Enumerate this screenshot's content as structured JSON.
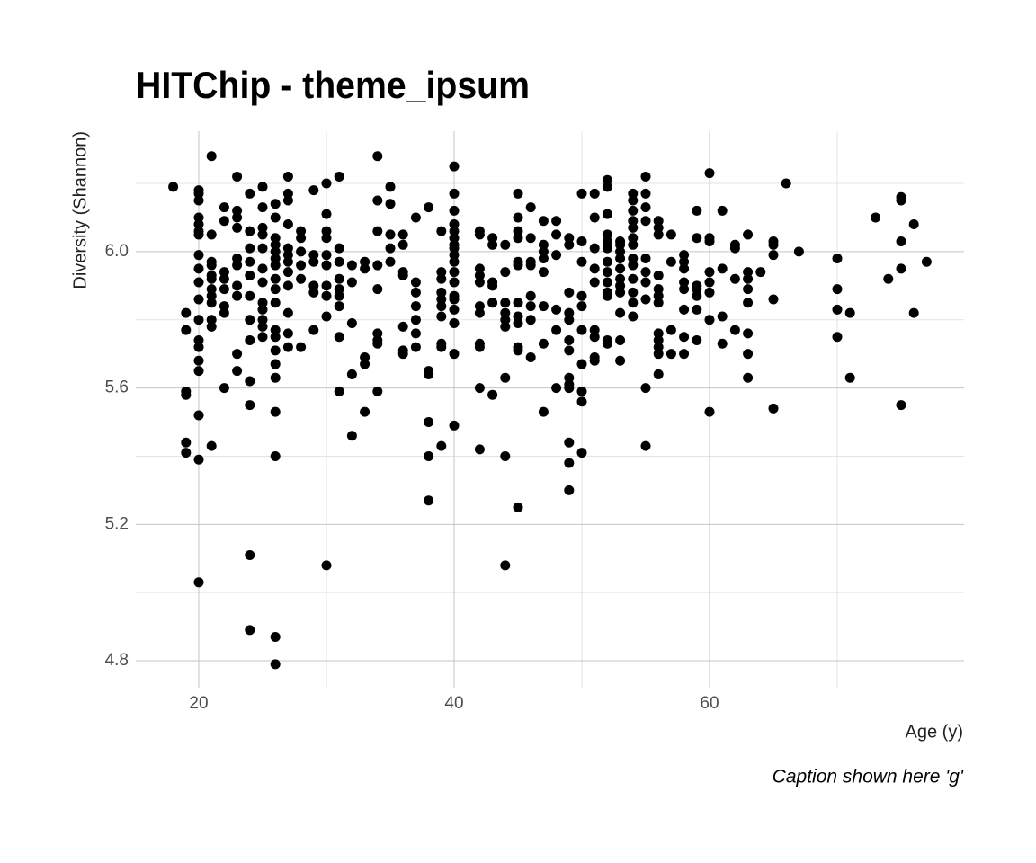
{
  "chart_data": {
    "type": "scatter",
    "title": "HITChip - theme_ipsum",
    "x_label": "Age (y)",
    "y_label": "Diversity (Shannon)",
    "caption": "Caption shown here 'g'",
    "color": "#000000",
    "grid": true,
    "xlim": [
      15.07,
      79.93
    ],
    "ylim": [
      4.721,
      6.353
    ],
    "xticks": [
      20,
      40,
      60
    ],
    "yticks": [
      4.8,
      5.2,
      5.6,
      6.0
    ],
    "xminor_ticks": [
      30,
      50,
      70
    ],
    "yminor_ticks": [
      5.0,
      5.4,
      5.8,
      6.2
    ],
    "x": [
      18,
      19,
      19,
      19,
      19,
      19,
      19,
      20,
      20,
      20,
      20,
      20,
      20,
      20,
      20,
      20,
      20,
      20,
      20,
      20,
      20,
      20,
      20,
      20,
      20,
      20,
      21,
      21,
      21,
      21,
      21,
      21,
      21,
      21,
      21,
      21,
      21,
      21,
      22,
      22,
      22,
      22,
      22,
      22,
      22,
      22,
      23,
      23,
      23,
      23,
      23,
      23,
      23,
      23,
      23,
      23,
      24,
      24,
      24,
      24,
      24,
      24,
      24,
      24,
      24,
      24,
      24,
      24,
      25,
      25,
      25,
      25,
      25,
      25,
      25,
      25,
      25,
      25,
      25,
      25,
      26,
      26,
      26,
      26,
      26,
      26,
      26,
      26,
      26,
      26,
      26,
      26,
      26,
      26,
      26,
      26,
      26,
      26,
      26,
      27,
      27,
      27,
      27,
      27,
      27,
      27,
      27,
      27,
      27,
      27,
      27,
      28,
      28,
      28,
      28,
      28,
      28,
      29,
      29,
      29,
      29,
      29,
      29,
      30,
      30,
      30,
      30,
      30,
      30,
      30,
      30,
      30,
      30,
      31,
      31,
      31,
      31,
      31,
      31,
      31,
      31,
      31,
      32,
      32,
      32,
      32,
      32,
      33,
      33,
      33,
      33,
      33,
      34,
      34,
      34,
      34,
      34,
      34,
      34,
      34,
      34,
      35,
      35,
      35,
      35,
      35,
      36,
      36,
      36,
      36,
      36,
      36,
      36,
      37,
      37,
      37,
      37,
      37,
      37,
      37,
      38,
      38,
      38,
      38,
      38,
      38,
      39,
      39,
      39,
      39,
      39,
      39,
      39,
      39,
      39,
      39,
      40,
      40,
      40,
      40,
      40,
      40,
      40,
      40,
      40,
      40,
      40,
      40,
      40,
      40,
      40,
      40,
      40,
      40,
      42,
      42,
      42,
      42,
      42,
      42,
      42,
      42,
      42,
      42,
      42,
      43,
      43,
      43,
      43,
      43,
      43,
      44,
      44,
      44,
      44,
      44,
      44,
      44,
      44,
      44,
      45,
      45,
      45,
      45,
      45,
      45,
      45,
      45,
      45,
      45,
      45,
      45,
      46,
      46,
      46,
      46,
      46,
      46,
      46,
      46,
      47,
      47,
      47,
      47,
      47,
      47,
      47,
      47,
      48,
      48,
      48,
      48,
      48,
      48,
      49,
      49,
      49,
      49,
      49,
      49,
      49,
      49,
      49,
      49,
      49,
      49,
      49,
      50,
      50,
      50,
      50,
      50,
      50,
      50,
      50,
      50,
      50,
      51,
      51,
      51,
      51,
      51,
      51,
      51,
      51,
      51,
      52,
      52,
      52,
      52,
      52,
      52,
      52,
      52,
      52,
      52,
      52,
      52,
      52,
      53,
      53,
      53,
      53,
      53,
      53,
      53,
      53,
      53,
      53,
      53,
      54,
      54,
      54,
      54,
      54,
      54,
      54,
      54,
      54,
      54,
      54,
      54,
      54,
      55,
      55,
      55,
      55,
      55,
      55,
      55,
      55,
      55,
      55,
      56,
      56,
      56,
      56,
      56,
      56,
      56,
      56,
      56,
      56,
      56,
      56,
      57,
      57,
      57,
      57,
      58,
      58,
      58,
      58,
      58,
      58,
      58,
      58,
      59,
      59,
      59,
      59,
      59,
      59,
      59,
      60,
      60,
      60,
      60,
      60,
      60,
      60,
      60,
      61,
      61,
      61,
      61,
      62,
      62,
      62,
      62,
      63,
      63,
      63,
      63,
      63,
      63,
      63,
      63,
      64,
      65,
      65,
      65,
      65,
      65,
      66,
      67,
      70,
      70,
      70,
      70,
      71,
      71,
      73,
      74,
      75,
      75,
      75,
      75,
      75,
      76,
      76,
      77
    ],
    "values": [
      6.19,
      5.82,
      5.77,
      5.59,
      5.58,
      5.44,
      5.41,
      6.18,
      6.17,
      6.15,
      6.1,
      6.08,
      6.06,
      6.05,
      5.99,
      5.95,
      5.91,
      5.86,
      5.8,
      5.74,
      5.72,
      5.68,
      5.65,
      5.52,
      5.39,
      5.03,
      6.28,
      6.05,
      5.97,
      5.96,
      5.93,
      5.92,
      5.89,
      5.87,
      5.85,
      5.8,
      5.78,
      5.43,
      6.13,
      6.09,
      5.94,
      5.92,
      5.89,
      5.84,
      5.82,
      5.6,
      6.22,
      6.12,
      6.1,
      6.07,
      5.98,
      5.96,
      5.9,
      5.87,
      5.7,
      5.65,
      6.17,
      6.06,
      6.01,
      5.97,
      5.93,
      5.87,
      5.8,
      5.74,
      5.62,
      5.55,
      5.11,
      4.89,
      6.19,
      6.13,
      6.07,
      6.05,
      6.01,
      5.95,
      5.91,
      5.85,
      5.83,
      5.8,
      5.78,
      5.75,
      6.14,
      6.1,
      6.04,
      6.02,
      6.0,
      5.98,
      5.96,
      5.92,
      5.89,
      5.85,
      5.77,
      5.75,
      5.71,
      5.67,
      5.63,
      5.53,
      5.4,
      4.87,
      4.79,
      6.22,
      6.17,
      6.15,
      6.08,
      6.01,
      5.99,
      5.97,
      5.94,
      5.9,
      5.82,
      5.76,
      5.72,
      6.06,
      6.04,
      6.0,
      5.96,
      5.92,
      5.72,
      6.18,
      5.99,
      5.97,
      5.9,
      5.88,
      5.77,
      6.2,
      6.11,
      6.06,
      6.04,
      5.99,
      5.96,
      5.9,
      5.87,
      5.81,
      5.08,
      6.22,
      6.01,
      5.97,
      5.92,
      5.89,
      5.87,
      5.84,
      5.75,
      5.59,
      5.96,
      5.91,
      5.79,
      5.64,
      5.46,
      5.97,
      5.95,
      5.69,
      5.67,
      5.53,
      6.28,
      6.15,
      6.06,
      5.96,
      5.89,
      5.76,
      5.74,
      5.73,
      5.59,
      6.19,
      6.14,
      6.05,
      6.01,
      5.97,
      6.05,
      6.02,
      5.94,
      5.93,
      5.78,
      5.71,
      5.7,
      6.1,
      5.91,
      5.88,
      5.84,
      5.8,
      5.76,
      5.72,
      6.13,
      5.65,
      5.64,
      5.5,
      5.4,
      5.27,
      6.06,
      5.94,
      5.92,
      5.88,
      5.86,
      5.84,
      5.81,
      5.73,
      5.72,
      5.43,
      6.25,
      6.17,
      6.12,
      6.08,
      6.06,
      6.04,
      6.02,
      6.01,
      5.99,
      5.97,
      5.94,
      5.91,
      5.87,
      5.86,
      5.83,
      5.79,
      5.7,
      5.49,
      6.06,
      6.05,
      5.95,
      5.93,
      5.91,
      5.84,
      5.82,
      5.73,
      5.72,
      5.6,
      5.42,
      6.04,
      6.02,
      5.91,
      5.9,
      5.85,
      5.58,
      6.02,
      5.94,
      5.85,
      5.82,
      5.8,
      5.78,
      5.63,
      5.4,
      5.08,
      6.17,
      6.1,
      6.06,
      6.04,
      5.97,
      5.96,
      5.85,
      5.81,
      5.79,
      5.72,
      5.71,
      5.25,
      6.13,
      6.04,
      5.97,
      5.96,
      5.87,
      5.84,
      5.8,
      5.69,
      6.09,
      6.02,
      6.0,
      5.98,
      5.94,
      5.84,
      5.73,
      5.53,
      6.09,
      6.05,
      5.99,
      5.83,
      5.77,
      5.6,
      6.04,
      6.02,
      5.88,
      5.82,
      5.8,
      5.74,
      5.71,
      5.63,
      5.61,
      5.6,
      5.44,
      5.38,
      5.3,
      6.17,
      6.03,
      5.97,
      5.87,
      5.84,
      5.77,
      5.67,
      5.59,
      5.56,
      5.41,
      6.17,
      6.1,
      6.01,
      5.95,
      5.91,
      5.77,
      5.75,
      5.69,
      5.68,
      6.21,
      6.19,
      6.11,
      6.05,
      6.03,
      6.01,
      5.97,
      5.94,
      5.91,
      5.88,
      5.87,
      5.74,
      5.73,
      6.03,
      6.02,
      6.0,
      5.98,
      5.95,
      5.92,
      5.9,
      5.88,
      5.82,
      5.74,
      5.68,
      6.17,
      6.15,
      6.12,
      6.09,
      6.07,
      6.04,
      6.02,
      5.98,
      5.96,
      5.92,
      5.88,
      5.85,
      5.81,
      6.22,
      6.17,
      6.13,
      6.09,
      5.98,
      5.94,
      5.91,
      5.86,
      5.6,
      5.43,
      6.09,
      6.07,
      6.05,
      5.93,
      5.89,
      5.87,
      5.85,
      5.76,
      5.74,
      5.72,
      5.7,
      5.64,
      6.05,
      5.97,
      5.77,
      5.7,
      5.99,
      5.97,
      5.95,
      5.91,
      5.89,
      5.83,
      5.75,
      5.7,
      6.12,
      6.04,
      5.9,
      5.89,
      5.87,
      5.83,
      5.74,
      6.23,
      6.04,
      6.03,
      5.94,
      5.91,
      5.88,
      5.8,
      5.53,
      6.12,
      5.95,
      5.81,
      5.73,
      6.02,
      6.01,
      5.92,
      5.77,
      6.05,
      5.94,
      5.92,
      5.89,
      5.85,
      5.76,
      5.7,
      5.63,
      5.94,
      6.03,
      6.02,
      5.99,
      5.86,
      5.54,
      6.2,
      6.0,
      5.98,
      5.89,
      5.83,
      5.75,
      5.82,
      5.63,
      6.1,
      5.92,
      6.16,
      6.15,
      6.03,
      5.95,
      5.55,
      6.08,
      5.82,
      5.97
    ]
  }
}
